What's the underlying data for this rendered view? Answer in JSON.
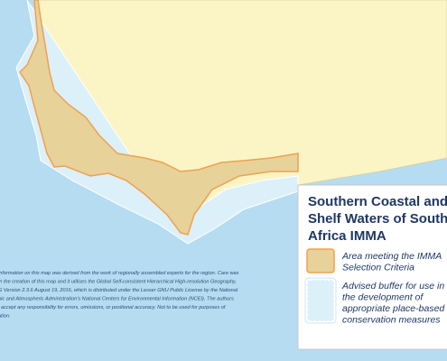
{
  "legend": {
    "title": [
      "Southern Coastal and",
      "Shelf Waters of South",
      "Africa IMMA"
    ],
    "items": [
      {
        "label": [
          "Area meeting the IMMA",
          "Selection Criteria"
        ]
      },
      {
        "label": [
          "Advised buffer for use in",
          "the development of",
          "appropriate place-based",
          "conservation measures"
        ]
      }
    ]
  },
  "disclaimer": [
    "information on this map was derived from the work of regionally assembled experts for the region. Care was",
    "in the creation of this map and it utilises the Global Self-consistent Hierarchical High-resolution Geography,",
    "G Version 2.3.6 August 19, 2016, which is distributed under the Lesser GNU Public License by the National",
    "nic and Atmospheric Administration's National Centers for Environmental Information (NCEI). The authors",
    "t accept any responsibility for errors, omissions, or positional accuracy. Not to be used for purposes of",
    "ation."
  ]
}
